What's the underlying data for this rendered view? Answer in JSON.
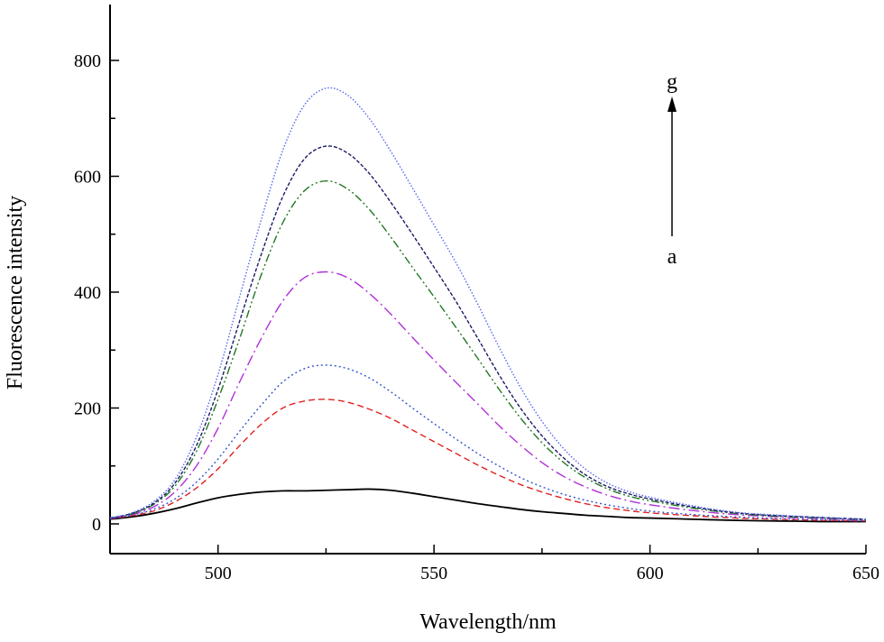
{
  "chart_data": {
    "type": "line",
    "title": "",
    "xlabel": "Wavelength/nm",
    "ylabel": "Fluorescence intensity",
    "xlim": [
      475,
      650
    ],
    "ylim": [
      -50,
      900
    ],
    "x_ticks": [
      500,
      550,
      600,
      650
    ],
    "x_tick_labels": [
      "500",
      "550",
      "600",
      "650"
    ],
    "y_ticks": [
      0,
      200,
      400,
      600,
      800
    ],
    "y_tick_labels": [
      "0",
      "200",
      "400",
      "600",
      "800"
    ],
    "grid": false,
    "legend": "none",
    "annotations": {
      "top_label": "g",
      "bottom_label": "a",
      "arrow": "upward arrow from a to g"
    },
    "x": [
      475,
      480,
      485,
      490,
      495,
      500,
      505,
      510,
      515,
      520,
      525,
      530,
      535,
      540,
      545,
      550,
      555,
      560,
      565,
      570,
      575,
      580,
      585,
      590,
      595,
      600,
      610,
      620,
      630,
      640,
      650
    ],
    "series": [
      {
        "color": "#000000",
        "dash": "solid",
        "values": [
          8,
          12,
          18,
          26,
          36,
          45,
          51,
          55,
          57,
          57,
          58,
          59,
          60,
          58,
          53,
          47,
          41,
          35,
          30,
          25,
          21,
          18,
          15,
          13,
          11,
          10,
          8,
          6,
          5,
          4,
          4
        ]
      },
      {
        "color": "#e02020",
        "dash": "dashed",
        "values": [
          9,
          14,
          22,
          38,
          62,
          95,
          135,
          172,
          200,
          212,
          215,
          210,
          198,
          182,
          162,
          142,
          122,
          102,
          84,
          68,
          55,
          44,
          35,
          28,
          23,
          19,
          14,
          10,
          8,
          6,
          5
        ]
      },
      {
        "color": "#3355cc",
        "dash": "dotted",
        "values": [
          9,
          15,
          25,
          43,
          72,
          112,
          160,
          205,
          245,
          268,
          274,
          268,
          252,
          228,
          200,
          173,
          147,
          122,
          100,
          80,
          64,
          51,
          41,
          33,
          27,
          22,
          16,
          12,
          9,
          7,
          5
        ]
      },
      {
        "color": "#b030d8",
        "dash": "dashdot",
        "values": [
          9,
          16,
          29,
          55,
          100,
          165,
          245,
          320,
          385,
          425,
          435,
          425,
          398,
          362,
          322,
          283,
          245,
          208,
          170,
          136,
          106,
          82,
          64,
          50,
          40,
          33,
          23,
          16,
          12,
          9,
          6
        ]
      },
      {
        "color": "#227722",
        "dash": "dashdotdot",
        "values": [
          10,
          17,
          33,
          65,
          125,
          215,
          320,
          430,
          520,
          575,
          592,
          578,
          543,
          495,
          443,
          392,
          340,
          287,
          233,
          183,
          140,
          106,
          80,
          61,
          48,
          40,
          27,
          18,
          13,
          10,
          7
        ]
      },
      {
        "color": "#1a1a66",
        "dash": "shortdash",
        "values": [
          10,
          18,
          35,
          70,
          135,
          232,
          350,
          465,
          565,
          630,
          652,
          640,
          605,
          555,
          500,
          443,
          385,
          322,
          258,
          200,
          152,
          114,
          85,
          65,
          52,
          43,
          29,
          19,
          14,
          11,
          8
        ]
      },
      {
        "color": "#5566ee",
        "dash": "finedot",
        "values": [
          10,
          19,
          38,
          76,
          150,
          258,
          392,
          525,
          645,
          723,
          752,
          740,
          700,
          643,
          580,
          516,
          452,
          381,
          306,
          236,
          177,
          130,
          95,
          71,
          56,
          46,
          31,
          20,
          15,
          11,
          8
        ]
      }
    ]
  }
}
